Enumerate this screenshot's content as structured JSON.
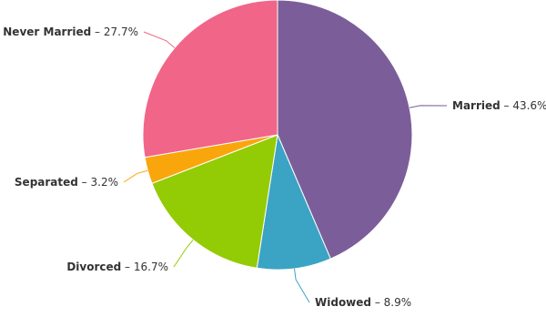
{
  "chart_data": {
    "type": "pie",
    "separator": " – ",
    "slices": [
      {
        "name": "Married",
        "label": "43.6%",
        "value": 43.6,
        "color": "#7B5E99"
      },
      {
        "name": "Widowed",
        "label": "8.9%",
        "value": 8.9,
        "color": "#3BA3C4"
      },
      {
        "name": "Divorced",
        "label": "16.7%",
        "value": 16.7,
        "color": "#93CB05"
      },
      {
        "name": "Separated",
        "label": "3.2%",
        "value": 3.2,
        "color": "#F9A60D"
      },
      {
        "name": "Never Married",
        "label": "27.7%",
        "value": 27.7,
        "color": "#F16589"
      }
    ],
    "start_angle_deg": 0,
    "direction": "clockwise",
    "legend": "none"
  }
}
